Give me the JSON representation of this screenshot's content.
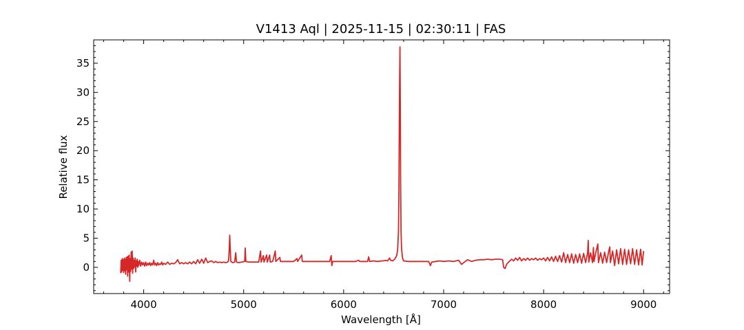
{
  "chart_data": {
    "type": "line",
    "title": "V1413 Aql | 2025-11-15 | 02:30:11 | FAS",
    "xlabel": "Wavelength [Å]",
    "ylabel": "Relative flux",
    "xlim": [
      3500,
      9260
    ],
    "ylim": [
      -4.5,
      39
    ],
    "xticks": [
      4000,
      5000,
      6000,
      7000,
      8000,
      9000
    ],
    "yticks": [
      0,
      5,
      10,
      15,
      20,
      25,
      30,
      35
    ],
    "grid": false,
    "line_color": "#d62728",
    "series": [
      {
        "name": "",
        "points": [
          [
            3770,
            -1.0
          ],
          [
            3775,
            1.2
          ],
          [
            3780,
            -0.8
          ],
          [
            3785,
            1.5
          ],
          [
            3790,
            -0.5
          ],
          [
            3795,
            1.3
          ],
          [
            3800,
            -0.9
          ],
          [
            3805,
            1.6
          ],
          [
            3810,
            -0.6
          ],
          [
            3815,
            1.4
          ],
          [
            3820,
            -1.2
          ],
          [
            3825,
            1.7
          ],
          [
            3830,
            -0.4
          ],
          [
            3835,
            1.8
          ],
          [
            3840,
            -1.5
          ],
          [
            3845,
            1.9
          ],
          [
            3850,
            -0.8
          ],
          [
            3855,
            2.1
          ],
          [
            3860,
            -2.4
          ],
          [
            3865,
            1.5
          ],
          [
            3870,
            -0.7
          ],
          [
            3875,
            2.6
          ],
          [
            3880,
            -0.3
          ],
          [
            3885,
            2.8
          ],
          [
            3890,
            -1.0
          ],
          [
            3895,
            1.6
          ],
          [
            3900,
            -0.2
          ],
          [
            3905,
            1.2
          ],
          [
            3910,
            0.1
          ],
          [
            3915,
            1.6
          ],
          [
            3920,
            -0.8
          ],
          [
            3925,
            1.1
          ],
          [
            3930,
            0.2
          ],
          [
            3935,
            1.4
          ],
          [
            3940,
            0.0
          ],
          [
            3945,
            1.0
          ],
          [
            3950,
            0.3
          ],
          [
            3960,
            1.2
          ],
          [
            3970,
            0.2
          ],
          [
            3980,
            0.9
          ],
          [
            3990,
            0.4
          ],
          [
            4000,
            0.8
          ],
          [
            4010,
            0.2
          ],
          [
            4020,
            0.9
          ],
          [
            4030,
            0.3
          ],
          [
            4040,
            0.7
          ],
          [
            4050,
            0.4
          ],
          [
            4060,
            0.8
          ],
          [
            4070,
            0.3
          ],
          [
            4080,
            0.7
          ],
          [
            4090,
            0.4
          ],
          [
            4100,
            1.2
          ],
          [
            4110,
            0.4
          ],
          [
            4120,
            0.7
          ],
          [
            4130,
            0.3
          ],
          [
            4140,
            0.8
          ],
          [
            4150,
            0.4
          ],
          [
            4160,
            0.6
          ],
          [
            4170,
            0.5
          ],
          [
            4180,
            0.9
          ],
          [
            4190,
            0.4
          ],
          [
            4200,
            0.7
          ],
          [
            4220,
            0.5
          ],
          [
            4240,
            0.9
          ],
          [
            4260,
            0.5
          ],
          [
            4280,
            0.7
          ],
          [
            4300,
            0.6
          ],
          [
            4320,
            0.8
          ],
          [
            4340,
            1.3
          ],
          [
            4360,
            0.6
          ],
          [
            4380,
            0.8
          ],
          [
            4400,
            0.6
          ],
          [
            4420,
            0.8
          ],
          [
            4440,
            0.6
          ],
          [
            4460,
            0.9
          ],
          [
            4480,
            0.6
          ],
          [
            4500,
            1.0
          ],
          [
            4520,
            0.6
          ],
          [
            4540,
            1.3
          ],
          [
            4560,
            0.7
          ],
          [
            4580,
            1.4
          ],
          [
            4600,
            0.7
          ],
          [
            4620,
            1.6
          ],
          [
            4640,
            0.8
          ],
          [
            4660,
            1.0
          ],
          [
            4680,
            1.1
          ],
          [
            4700,
            0.8
          ],
          [
            4720,
            1.0
          ],
          [
            4740,
            0.8
          ],
          [
            4760,
            0.9
          ],
          [
            4780,
            0.8
          ],
          [
            4800,
            0.9
          ],
          [
            4820,
            0.8
          ],
          [
            4840,
            0.9
          ],
          [
            4850,
            1.2
          ],
          [
            4855,
            3.0
          ],
          [
            4861,
            5.5
          ],
          [
            4866,
            3.0
          ],
          [
            4872,
            1.0
          ],
          [
            4890,
            0.8
          ],
          [
            4910,
            0.9
          ],
          [
            4921,
            2.5
          ],
          [
            4928,
            0.9
          ],
          [
            4950,
            0.8
          ],
          [
            4980,
            0.9
          ],
          [
            5010,
            1.0
          ],
          [
            5016,
            3.3
          ],
          [
            5022,
            1.0
          ],
          [
            5050,
            0.9
          ],
          [
            5080,
            0.9
          ],
          [
            5100,
            0.9
          ],
          [
            5120,
            0.9
          ],
          [
            5150,
            0.9
          ],
          [
            5169,
            2.8
          ],
          [
            5175,
            0.9
          ],
          [
            5197,
            2.0
          ],
          [
            5203,
            0.9
          ],
          [
            5230,
            2.1
          ],
          [
            5236,
            0.9
          ],
          [
            5260,
            2.1
          ],
          [
            5266,
            0.9
          ],
          [
            5290,
            1.0
          ],
          [
            5316,
            2.8
          ],
          [
            5322,
            1.0
          ],
          [
            5362,
            1.7
          ],
          [
            5368,
            1.0
          ],
          [
            5400,
            1.0
          ],
          [
            5430,
            1.0
          ],
          [
            5460,
            1.0
          ],
          [
            5500,
            1.0
          ],
          [
            5534,
            1.5
          ],
          [
            5540,
            1.0
          ],
          [
            5580,
            2.1
          ],
          [
            5586,
            1.0
          ],
          [
            5620,
            1.0
          ],
          [
            5660,
            1.0
          ],
          [
            5700,
            1.0
          ],
          [
            5740,
            1.0
          ],
          [
            5780,
            1.0
          ],
          [
            5820,
            1.0
          ],
          [
            5860,
            1.0
          ],
          [
            5876,
            2.0
          ],
          [
            5882,
            0.3
          ],
          [
            5890,
            1.0
          ],
          [
            5920,
            1.0
          ],
          [
            5960,
            1.0
          ],
          [
            6000,
            1.0
          ],
          [
            6040,
            1.0
          ],
          [
            6080,
            1.0
          ],
          [
            6120,
            1.0
          ],
          [
            6150,
            1.2
          ],
          [
            6160,
            1.0
          ],
          [
            6200,
            1.0
          ],
          [
            6240,
            1.0
          ],
          [
            6250,
            1.8
          ],
          [
            6260,
            1.0
          ],
          [
            6300,
            1.1
          ],
          [
            6340,
            1.0
          ],
          [
            6380,
            1.1
          ],
          [
            6400,
            1.1
          ],
          [
            6420,
            1.2
          ],
          [
            6440,
            1.1
          ],
          [
            6460,
            1.6
          ],
          [
            6470,
            1.2
          ],
          [
            6490,
            1.1
          ],
          [
            6510,
            1.4
          ],
          [
            6530,
            2.0
          ],
          [
            6540,
            3.0
          ],
          [
            6548,
            6.0
          ],
          [
            6552,
            12.0
          ],
          [
            6556,
            22.0
          ],
          [
            6560,
            32.0
          ],
          [
            6563,
            37.8
          ],
          [
            6566,
            30.0
          ],
          [
            6570,
            14.0
          ],
          [
            6574,
            6.0
          ],
          [
            6580,
            3.0
          ],
          [
            6590,
            1.5
          ],
          [
            6600,
            1.1
          ],
          [
            6650,
            1.0
          ],
          [
            6700,
            1.0
          ],
          [
            6750,
            1.0
          ],
          [
            6800,
            1.0
          ],
          [
            6850,
            1.0
          ],
          [
            6868,
            0.3
          ],
          [
            6880,
            0.9
          ],
          [
            6920,
            1.0
          ],
          [
            6960,
            1.1
          ],
          [
            7000,
            1.0
          ],
          [
            7050,
            1.1
          ],
          [
            7100,
            1.0
          ],
          [
            7150,
            1.2
          ],
          [
            7180,
            0.5
          ],
          [
            7200,
            0.8
          ],
          [
            7240,
            1.3
          ],
          [
            7280,
            1.0
          ],
          [
            7320,
            1.2
          ],
          [
            7360,
            1.3
          ],
          [
            7400,
            1.3
          ],
          [
            7440,
            1.4
          ],
          [
            7480,
            1.3
          ],
          [
            7520,
            1.4
          ],
          [
            7560,
            1.4
          ],
          [
            7590,
            1.3
          ],
          [
            7600,
            0.0
          ],
          [
            7615,
            -0.2
          ],
          [
            7630,
            0.5
          ],
          [
            7650,
            0.9
          ],
          [
            7680,
            1.4
          ],
          [
            7700,
            1.1
          ],
          [
            7720,
            1.6
          ],
          [
            7740,
            1.2
          ],
          [
            7760,
            1.7
          ],
          [
            7780,
            1.1
          ],
          [
            7800,
            1.5
          ],
          [
            7820,
            1.2
          ],
          [
            7840,
            1.6
          ],
          [
            7860,
            1.2
          ],
          [
            7880,
            1.5
          ],
          [
            7900,
            1.3
          ],
          [
            7920,
            1.6
          ],
          [
            7940,
            1.2
          ],
          [
            7960,
            1.5
          ],
          [
            7980,
            1.3
          ],
          [
            8000,
            1.6
          ],
          [
            8020,
            1.1
          ],
          [
            8040,
            1.7
          ],
          [
            8060,
            1.1
          ],
          [
            8080,
            1.8
          ],
          [
            8100,
            1.0
          ],
          [
            8120,
            1.9
          ],
          [
            8140,
            1.0
          ],
          [
            8160,
            2.0
          ],
          [
            8180,
            0.9
          ],
          [
            8200,
            2.5
          ],
          [
            8220,
            0.8
          ],
          [
            8240,
            2.2
          ],
          [
            8260,
            0.8
          ],
          [
            8280,
            2.3
          ],
          [
            8300,
            0.7
          ],
          [
            8320,
            2.2
          ],
          [
            8340,
            0.8
          ],
          [
            8360,
            2.3
          ],
          [
            8380,
            0.7
          ],
          [
            8400,
            2.4
          ],
          [
            8420,
            0.8
          ],
          [
            8440,
            2.5
          ],
          [
            8446,
            4.6
          ],
          [
            8452,
            0.9
          ],
          [
            8470,
            2.5
          ],
          [
            8490,
            0.8
          ],
          [
            8498,
            3.4
          ],
          [
            8504,
            1.0
          ],
          [
            8520,
            2.4
          ],
          [
            8542,
            4.0
          ],
          [
            8548,
            0.8
          ],
          [
            8570,
            2.5
          ],
          [
            8590,
            0.7
          ],
          [
            8610,
            2.6
          ],
          [
            8630,
            0.8
          ],
          [
            8650,
            2.7
          ],
          [
            8662,
            3.5
          ],
          [
            8668,
            0.8
          ],
          [
            8690,
            2.8
          ],
          [
            8710,
            0.3
          ],
          [
            8730,
            3.0
          ],
          [
            8750,
            0.6
          ],
          [
            8770,
            3.2
          ],
          [
            8790,
            0.5
          ],
          [
            8810,
            3.1
          ],
          [
            8830,
            0.5
          ],
          [
            8850,
            3.0
          ],
          [
            8870,
            0.6
          ],
          [
            8890,
            3.2
          ],
          [
            8910,
            0.5
          ],
          [
            8930,
            3.0
          ],
          [
            8950,
            0.4
          ],
          [
            8970,
            3.1
          ],
          [
            8985,
            0.4
          ],
          [
            9000,
            2.8
          ]
        ]
      }
    ]
  }
}
